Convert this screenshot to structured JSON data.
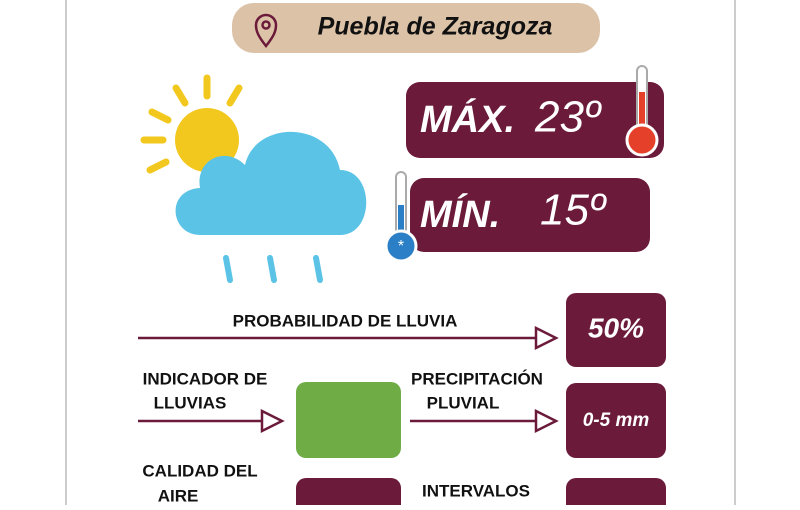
{
  "location": "Puebla de Zaragoza",
  "max": {
    "label": "MÁX.",
    "value": "23º"
  },
  "min": {
    "label": "MÍN.",
    "value": "15º"
  },
  "rain_probability": {
    "label": "PROBABILIDAD DE LLUVIA",
    "value": "50%"
  },
  "rain_indicator": {
    "label_lines": [
      "INDICADOR DE",
      "LLUVIAS"
    ]
  },
  "precipitation": {
    "label_lines": [
      "PRECIPITACIÓN",
      "PLUVIAL"
    ],
    "value": "0-5 mm"
  },
  "air_quality": {
    "label_lines": [
      "CALIDAD DEL",
      "AIRE"
    ]
  },
  "intervals": {
    "label": "INTERVALOS"
  }
}
